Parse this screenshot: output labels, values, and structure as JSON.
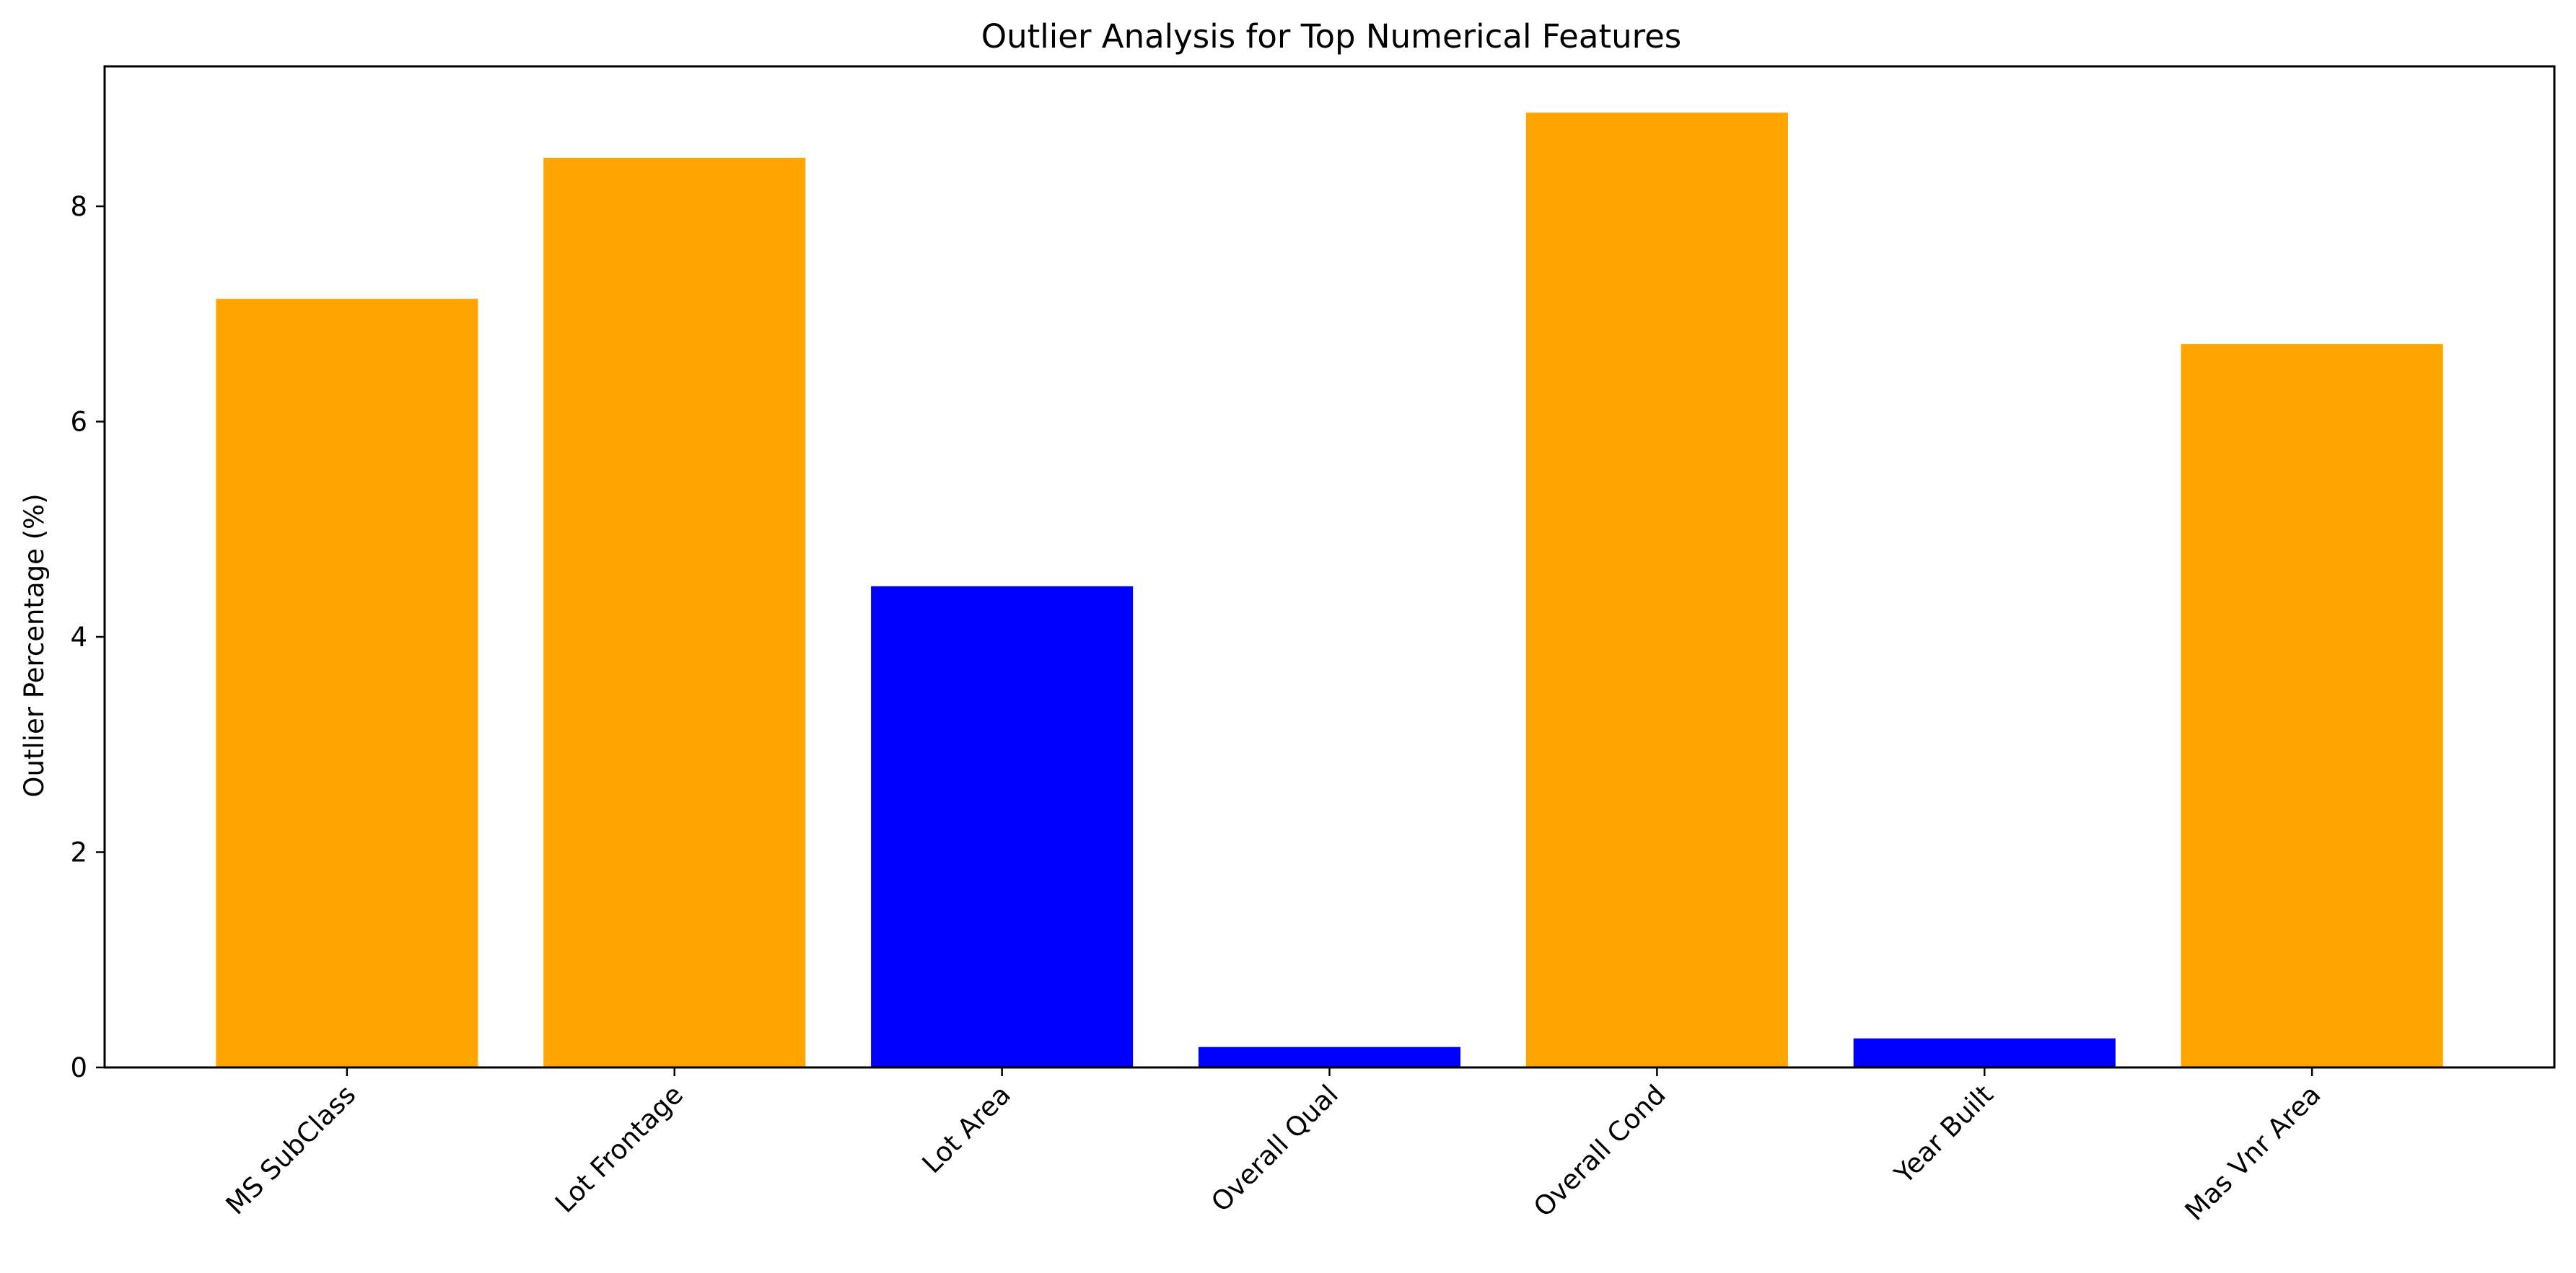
{
  "chart_data": {
    "type": "bar",
    "title": "Outlier Analysis for Top Numerical Features",
    "xlabel": "",
    "ylabel": "Outlier Percentage (%)",
    "categories": [
      "MS SubClass",
      "Lot Frontage",
      "Lot Area",
      "Overall Qual",
      "Overall Cond",
      "Year Built",
      "Mas Vnr Area"
    ],
    "values": [
      7.14,
      8.45,
      4.47,
      0.19,
      8.87,
      0.27,
      6.72
    ],
    "bar_colors": [
      "#ffa500",
      "#ffa500",
      "#0000ff",
      "#0000ff",
      "#ffa500",
      "#0000ff",
      "#ffa500"
    ],
    "ylim": [
      0,
      9.3
    ],
    "yticks": [
      0,
      2,
      4,
      6,
      8
    ],
    "grid": false,
    "legend": null
  }
}
